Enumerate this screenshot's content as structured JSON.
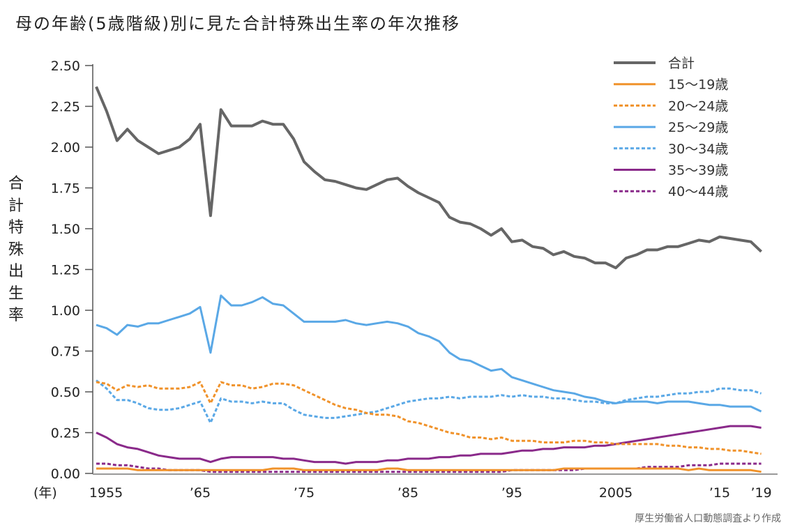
{
  "chart_data": {
    "type": "line",
    "title": "母の年齢(5歳階級)別に見た合計特殊出生率の年次推移",
    "ylabel": "合計特殊出生率",
    "xlabel": "(年)",
    "source": "厚生労働省人口動態調査より作成",
    "ylim": [
      0,
      2.5
    ],
    "xlim": [
      1955,
      2019
    ],
    "yticks": [
      "0.00",
      "0.25",
      "0.50",
      "0.75",
      "1.00",
      "1.25",
      "1.50",
      "1.75",
      "2.00",
      "2.25",
      "2.50"
    ],
    "xticks": [
      {
        "year": 1955,
        "label": "1955"
      },
      {
        "year": 1965,
        "label": "’65"
      },
      {
        "year": 1975,
        "label": "’75"
      },
      {
        "year": 1985,
        "label": "’85"
      },
      {
        "year": 1995,
        "label": "’95"
      },
      {
        "year": 2005,
        "label": "2005"
      },
      {
        "year": 2015,
        "label": "’15"
      },
      {
        "year": 2019,
        "label": "’19"
      }
    ],
    "legend_position": "top-right",
    "x_start": 1955,
    "series": [
      {
        "name": "合計",
        "color": "#666666",
        "dash": false,
        "width": 4,
        "values": [
          2.37,
          2.22,
          2.04,
          2.11,
          2.04,
          2.0,
          1.96,
          1.98,
          2.0,
          2.05,
          2.14,
          1.58,
          2.23,
          2.13,
          2.13,
          2.13,
          2.16,
          2.14,
          2.14,
          2.05,
          1.91,
          1.85,
          1.8,
          1.79,
          1.77,
          1.75,
          1.74,
          1.77,
          1.8,
          1.81,
          1.76,
          1.72,
          1.69,
          1.66,
          1.57,
          1.54,
          1.53,
          1.5,
          1.46,
          1.5,
          1.42,
          1.43,
          1.39,
          1.38,
          1.34,
          1.36,
          1.33,
          1.32,
          1.29,
          1.29,
          1.26,
          1.32,
          1.34,
          1.37,
          1.37,
          1.39,
          1.39,
          1.41,
          1.43,
          1.42,
          1.45,
          1.44,
          1.43,
          1.42,
          1.36
        ]
      },
      {
        "name": "15～19歳",
        "color": "#f0922a",
        "dash": false,
        "width": 3,
        "values": [
          0.03,
          0.03,
          0.03,
          0.03,
          0.02,
          0.02,
          0.02,
          0.02,
          0.02,
          0.02,
          0.02,
          0.02,
          0.02,
          0.02,
          0.02,
          0.02,
          0.02,
          0.03,
          0.03,
          0.03,
          0.02,
          0.02,
          0.02,
          0.02,
          0.02,
          0.02,
          0.02,
          0.02,
          0.03,
          0.03,
          0.02,
          0.02,
          0.02,
          0.02,
          0.02,
          0.02,
          0.02,
          0.02,
          0.02,
          0.02,
          0.02,
          0.02,
          0.02,
          0.02,
          0.02,
          0.03,
          0.03,
          0.03,
          0.03,
          0.03,
          0.03,
          0.03,
          0.03,
          0.03,
          0.03,
          0.03,
          0.03,
          0.02,
          0.03,
          0.02,
          0.02,
          0.02,
          0.02,
          0.02,
          0.01
        ]
      },
      {
        "name": "20～24歳",
        "color": "#f0922a",
        "dash": true,
        "width": 3,
        "values": [
          0.56,
          0.55,
          0.51,
          0.54,
          0.53,
          0.54,
          0.52,
          0.52,
          0.52,
          0.53,
          0.56,
          0.43,
          0.56,
          0.54,
          0.54,
          0.52,
          0.53,
          0.55,
          0.55,
          0.54,
          0.51,
          0.48,
          0.45,
          0.42,
          0.4,
          0.39,
          0.37,
          0.36,
          0.36,
          0.35,
          0.32,
          0.31,
          0.29,
          0.27,
          0.25,
          0.24,
          0.22,
          0.22,
          0.21,
          0.22,
          0.2,
          0.2,
          0.2,
          0.19,
          0.19,
          0.19,
          0.2,
          0.2,
          0.19,
          0.19,
          0.18,
          0.18,
          0.18,
          0.18,
          0.18,
          0.17,
          0.17,
          0.16,
          0.16,
          0.15,
          0.15,
          0.14,
          0.14,
          0.13,
          0.12
        ]
      },
      {
        "name": "25～29歳",
        "color": "#5aa8e6",
        "dash": false,
        "width": 3,
        "values": [
          0.91,
          0.89,
          0.85,
          0.91,
          0.9,
          0.92,
          0.92,
          0.94,
          0.96,
          0.98,
          1.02,
          0.74,
          1.09,
          1.03,
          1.03,
          1.05,
          1.08,
          1.04,
          1.03,
          0.98,
          0.93,
          0.93,
          0.93,
          0.93,
          0.94,
          0.92,
          0.91,
          0.92,
          0.93,
          0.92,
          0.9,
          0.86,
          0.84,
          0.81,
          0.74,
          0.7,
          0.69,
          0.66,
          0.63,
          0.64,
          0.59,
          0.57,
          0.55,
          0.53,
          0.51,
          0.5,
          0.49,
          0.47,
          0.46,
          0.44,
          0.43,
          0.44,
          0.44,
          0.44,
          0.43,
          0.44,
          0.44,
          0.44,
          0.43,
          0.42,
          0.42,
          0.41,
          0.41,
          0.41,
          0.38
        ]
      },
      {
        "name": "30～34歳",
        "color": "#5aa8e6",
        "dash": true,
        "width": 3,
        "values": [
          0.57,
          0.52,
          0.45,
          0.45,
          0.43,
          0.4,
          0.39,
          0.39,
          0.4,
          0.42,
          0.44,
          0.31,
          0.46,
          0.44,
          0.44,
          0.43,
          0.44,
          0.43,
          0.43,
          0.39,
          0.36,
          0.35,
          0.34,
          0.34,
          0.35,
          0.36,
          0.37,
          0.38,
          0.4,
          0.42,
          0.44,
          0.45,
          0.46,
          0.46,
          0.47,
          0.46,
          0.47,
          0.47,
          0.47,
          0.48,
          0.47,
          0.48,
          0.47,
          0.47,
          0.46,
          0.46,
          0.45,
          0.44,
          0.44,
          0.43,
          0.43,
          0.45,
          0.46,
          0.47,
          0.47,
          0.48,
          0.49,
          0.49,
          0.5,
          0.5,
          0.52,
          0.52,
          0.51,
          0.51,
          0.49
        ]
      },
      {
        "name": "35～39歳",
        "color": "#8a2a8a",
        "dash": false,
        "width": 3,
        "values": [
          0.25,
          0.22,
          0.18,
          0.16,
          0.15,
          0.13,
          0.11,
          0.1,
          0.09,
          0.09,
          0.09,
          0.07,
          0.09,
          0.1,
          0.1,
          0.1,
          0.1,
          0.1,
          0.09,
          0.09,
          0.08,
          0.07,
          0.07,
          0.07,
          0.06,
          0.07,
          0.07,
          0.07,
          0.08,
          0.08,
          0.09,
          0.09,
          0.09,
          0.1,
          0.1,
          0.11,
          0.11,
          0.12,
          0.12,
          0.12,
          0.13,
          0.14,
          0.14,
          0.15,
          0.15,
          0.16,
          0.16,
          0.16,
          0.17,
          0.17,
          0.18,
          0.19,
          0.2,
          0.21,
          0.22,
          0.23,
          0.24,
          0.25,
          0.26,
          0.27,
          0.28,
          0.29,
          0.29,
          0.29,
          0.28
        ]
      },
      {
        "name": "40～44歳",
        "color": "#8a2a8a",
        "dash": true,
        "width": 3,
        "values": [
          0.06,
          0.06,
          0.05,
          0.05,
          0.04,
          0.03,
          0.03,
          0.02,
          0.02,
          0.02,
          0.02,
          0.01,
          0.01,
          0.01,
          0.01,
          0.01,
          0.01,
          0.01,
          0.01,
          0.01,
          0.01,
          0.01,
          0.01,
          0.01,
          0.01,
          0.01,
          0.01,
          0.01,
          0.01,
          0.01,
          0.01,
          0.01,
          0.01,
          0.01,
          0.01,
          0.01,
          0.01,
          0.01,
          0.01,
          0.01,
          0.02,
          0.02,
          0.02,
          0.02,
          0.02,
          0.02,
          0.02,
          0.03,
          0.03,
          0.03,
          0.03,
          0.03,
          0.03,
          0.04,
          0.04,
          0.04,
          0.04,
          0.05,
          0.05,
          0.05,
          0.06,
          0.06,
          0.06,
          0.06,
          0.06
        ]
      }
    ]
  }
}
